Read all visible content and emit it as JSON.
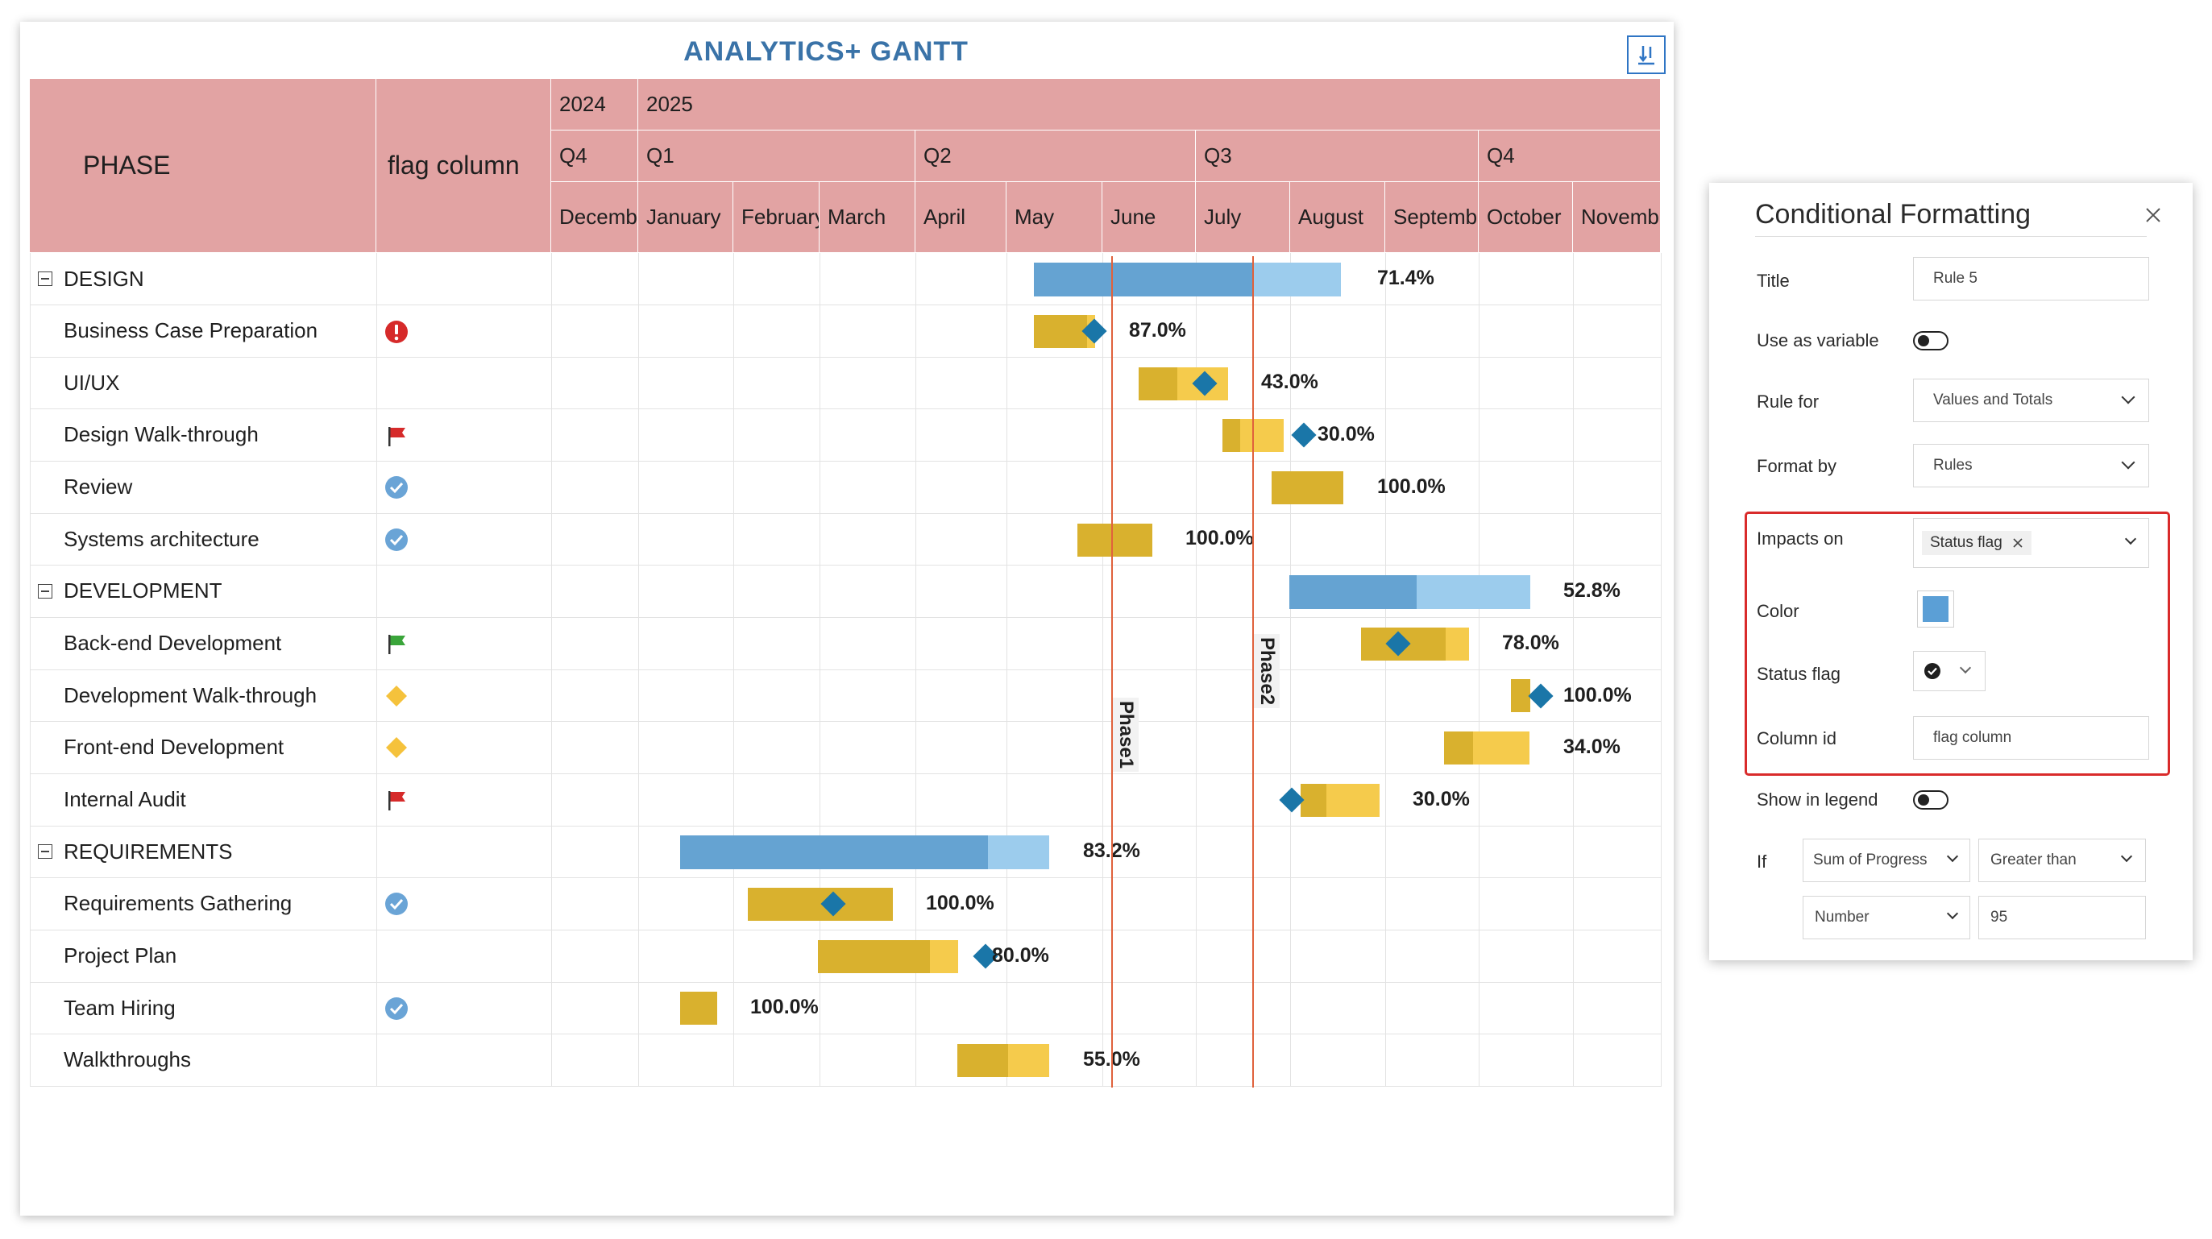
{
  "gantt": {
    "title": "ANALYTICS+ GANTT",
    "export_icon": "download-icon",
    "header": {
      "phase": "PHASE",
      "flag_column": "flag column",
      "years": [
        "2024",
        "2025"
      ],
      "quarters": [
        "Q4",
        "Q1",
        "Q2",
        "Q3",
        "Q4"
      ],
      "months": [
        "Decemb",
        "January",
        "February",
        "March",
        "April",
        "May",
        "June",
        "July",
        "August",
        "Septemb",
        "October",
        "Novemb"
      ]
    },
    "rows": [
      {
        "label": "DESIGN",
        "group": true,
        "flag": "",
        "pct": "71.4%"
      },
      {
        "label": "Business Case Preparation",
        "group": false,
        "flag": "exclamation-icon",
        "pct": "87.0%"
      },
      {
        "label": "UI/UX",
        "group": false,
        "flag": "",
        "pct": "43.0%"
      },
      {
        "label": "Design Walk-through",
        "group": false,
        "flag": "red-flag-icon",
        "pct": "30.0%"
      },
      {
        "label": "Review",
        "group": false,
        "flag": "check-circle-icon",
        "pct": "100.0%"
      },
      {
        "label": "Systems architecture",
        "group": false,
        "flag": "check-circle-icon",
        "pct": "100.0%"
      },
      {
        "label": "DEVELOPMENT",
        "group": true,
        "flag": "",
        "pct": "52.8%"
      },
      {
        "label": "Back-end Development",
        "group": false,
        "flag": "green-flag-icon",
        "pct": "78.0%"
      },
      {
        "label": "Development Walk-through",
        "group": false,
        "flag": "yellow-diamond-icon",
        "pct": "100.0%"
      },
      {
        "label": "Front-end Development",
        "group": false,
        "flag": "yellow-diamond-icon",
        "pct": "34.0%"
      },
      {
        "label": "Internal Audit",
        "group": false,
        "flag": "red-flag-icon",
        "pct": "30.0%"
      },
      {
        "label": "REQUIREMENTS",
        "group": true,
        "flag": "",
        "pct": "83.2%"
      },
      {
        "label": "Requirements Gathering",
        "group": false,
        "flag": "check-circle-icon",
        "pct": "100.0%"
      },
      {
        "label": "Project Plan",
        "group": false,
        "flag": "",
        "pct": "80.0%"
      },
      {
        "label": "Team Hiring",
        "group": false,
        "flag": "check-circle-icon",
        "pct": "100.0%"
      },
      {
        "label": "Walkthroughs",
        "group": false,
        "flag": "",
        "pct": "55.0%"
      }
    ],
    "phase_markers": [
      "Phase1",
      "Phase2"
    ],
    "colors": {
      "header": "#e2a3a3",
      "group_bar": "#65a3d2",
      "group_bar_light": "#9ccced",
      "task_bar": "#d9b12e",
      "task_bar_light": "#f5cb4c",
      "milestone": "#1a76a8",
      "phase_line": "#e0623c"
    }
  },
  "panel": {
    "title": "Conditional Formatting",
    "close_icon": "close-icon",
    "title_label": "Title",
    "title_value": "Rule 5",
    "use_as_variable_label": "Use as variable",
    "rule_for_label": "Rule for",
    "rule_for_value": "Values and Totals",
    "format_by_label": "Format by",
    "format_by_value": "Rules",
    "impacts_on_label": "Impacts on",
    "impacts_on_chip": "Status flag",
    "color_label": "Color",
    "color_value": "#5b9fd6",
    "status_flag_label": "Status flag",
    "status_flag_icon": "check-circle-icon",
    "column_id_label": "Column id",
    "column_id_value": "flag column",
    "show_in_legend_label": "Show in legend",
    "if_label": "If",
    "if_field": "Sum of Progress",
    "if_operator": "Greater than",
    "if_type": "Number",
    "if_value": "95",
    "highlight_color": "#d92b2b"
  }
}
